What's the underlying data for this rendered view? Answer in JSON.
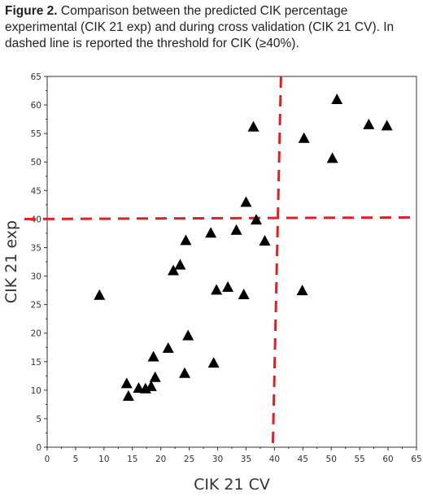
{
  "caption": {
    "label": "Figure 2.",
    "text": "Comparison between the predicted CIK percentage experimental (CIK 21 exp) and during cross validation (CIK 21 CV). In dashed line is reported the threshold for CIK (≥40%)."
  },
  "chart_data": {
    "type": "scatter",
    "xlabel": "CIK 21 CV",
    "ylabel": "CIK 21 exp",
    "xlim": [
      0,
      65
    ],
    "ylim": [
      0,
      65
    ],
    "xticks": [
      0,
      5,
      10,
      15,
      20,
      25,
      30,
      35,
      40,
      45,
      50,
      55,
      60,
      65
    ],
    "yticks": [
      0,
      5,
      10,
      15,
      20,
      25,
      30,
      35,
      40,
      45,
      50,
      55,
      60,
      65
    ],
    "grid": false,
    "threshold_x": 40,
    "threshold_y": 40,
    "marker": "triangle",
    "marker_color": "#000000",
    "threshold_color": "#e02020",
    "points": [
      {
        "x": 9.2,
        "y": 26.7
      },
      {
        "x": 14.0,
        "y": 11.2
      },
      {
        "x": 14.3,
        "y": 9.0
      },
      {
        "x": 16.1,
        "y": 10.4
      },
      {
        "x": 17.3,
        "y": 10.3
      },
      {
        "x": 18.3,
        "y": 10.7
      },
      {
        "x": 18.7,
        "y": 15.9
      },
      {
        "x": 19.0,
        "y": 12.3
      },
      {
        "x": 21.3,
        "y": 17.4
      },
      {
        "x": 22.2,
        "y": 31.0
      },
      {
        "x": 23.4,
        "y": 32.0
      },
      {
        "x": 24.2,
        "y": 13.0
      },
      {
        "x": 24.4,
        "y": 36.3
      },
      {
        "x": 24.8,
        "y": 19.6
      },
      {
        "x": 28.8,
        "y": 37.6
      },
      {
        "x": 29.3,
        "y": 14.8
      },
      {
        "x": 29.8,
        "y": 27.6
      },
      {
        "x": 31.8,
        "y": 28.1
      },
      {
        "x": 33.3,
        "y": 38.1
      },
      {
        "x": 34.6,
        "y": 26.8
      },
      {
        "x": 35.0,
        "y": 43.0
      },
      {
        "x": 36.3,
        "y": 56.2
      },
      {
        "x": 36.8,
        "y": 39.9
      },
      {
        "x": 38.3,
        "y": 36.2
      },
      {
        "x": 44.9,
        "y": 27.5
      },
      {
        "x": 45.2,
        "y": 54.2
      },
      {
        "x": 50.2,
        "y": 50.7
      },
      {
        "x": 51.0,
        "y": 61.0
      },
      {
        "x": 56.6,
        "y": 56.6
      },
      {
        "x": 59.8,
        "y": 56.4
      }
    ]
  }
}
